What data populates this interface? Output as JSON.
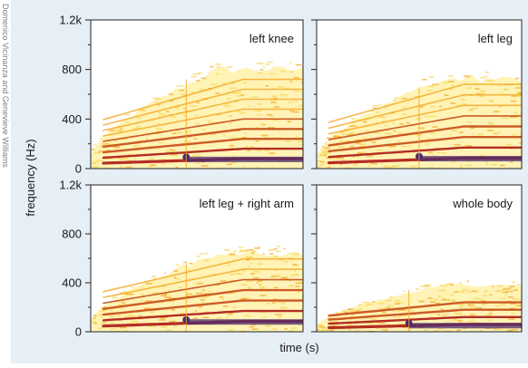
{
  "credit": "Domenico Vicinanza and Genevieve Williams",
  "colors": {
    "background": "#e6eef6",
    "plot_bg": "#ffffff",
    "spectrogram_low": "#fff1a8",
    "spectrogram_mid": "#f4a623",
    "spectrogram_high": "#b0231c",
    "spectrogram_peak": "#4b2a6e"
  },
  "chart_data": [
    {
      "type": "heatmap",
      "title": "left knee",
      "xlabel": "time (s)",
      "ylabel": "frequency (Hz)",
      "ylim": [
        0,
        1200
      ],
      "yticks": [
        0,
        400,
        800,
        1200
      ],
      "ytick_labels": [
        "0",
        "400",
        "800",
        "1.2k"
      ],
      "description_values": {
        "fundamental_hz": 80,
        "harmonics": 9,
        "max_energy_freq_hz": 800,
        "onset_fraction": 0.45
      }
    },
    {
      "type": "heatmap",
      "title": "left leg",
      "ylim": [
        0,
        1200
      ],
      "description_values": {
        "fundamental_hz": 85,
        "harmonics": 8,
        "max_energy_freq_hz": 720,
        "onset_fraction": 0.5
      }
    },
    {
      "type": "heatmap",
      "title": "left leg + right arm",
      "xlabel": "time (s)",
      "ylabel": "frequency (Hz)",
      "ylim": [
        0,
        1200
      ],
      "yticks": [
        0,
        400,
        800,
        1200
      ],
      "ytick_labels": [
        "0",
        "400",
        "800",
        "1.2k"
      ],
      "description_values": {
        "fundamental_hz": 85,
        "harmonics": 7,
        "max_energy_freq_hz": 640,
        "onset_fraction": 0.45
      }
    },
    {
      "type": "heatmap",
      "title": "whole body",
      "ylim": [
        0,
        1200
      ],
      "description_values": {
        "fundamental_hz": 60,
        "harmonics": 4,
        "max_energy_freq_hz": 380,
        "onset_fraction": 0.45
      }
    }
  ],
  "shared": {
    "xlabel": "time (s)",
    "ylabel": "frequency (Hz)",
    "ytick_labels": [
      "0",
      "400",
      "800",
      "1.2k"
    ]
  }
}
